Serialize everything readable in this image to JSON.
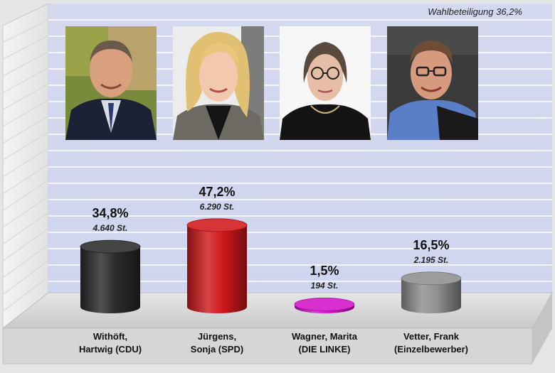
{
  "turnout_label": "Wahlbeteiligung 36,2%",
  "chart_data": {
    "type": "bar",
    "categories": [
      "Withöft, Hartwig (CDU)",
      "Jürgens, Sonja (SPD)",
      "Wagner, Marita (DIE LINKE)",
      "Vetter, Frank (Einzelbewerber)"
    ],
    "series": [
      {
        "values": [
          34.8,
          47.2,
          1.5,
          16.5
        ]
      }
    ],
    "ylim": [
      0,
      100
    ],
    "grid": true,
    "legend": "none"
  },
  "candidates": [
    {
      "name_line1": "Withöft,",
      "name_line2": "Hartwig (CDU)",
      "percent_label": "34,8%",
      "percent": 34.8,
      "votes_label": "4.640 St.",
      "bar_color": "#2a2a2a"
    },
    {
      "name_line1": "Jürgens,",
      "name_line2": "Sonja (SPD)",
      "percent_label": "47,2%",
      "percent": 47.2,
      "votes_label": "6.290 St.",
      "bar_color": "#d0181c"
    },
    {
      "name_line1": "Wagner, Marita",
      "name_line2": "(DIE LINKE)",
      "percent_label": "1,5%",
      "percent": 1.5,
      "votes_label": "194 St.",
      "bar_color": "#d313c9"
    },
    {
      "name_line1": "Vetter, Frank",
      "name_line2": "(Einzelbewerber)",
      "percent_label": "16,5%",
      "percent": 16.5,
      "votes_label": "2.195 St.",
      "bar_color": "#8f8f8f"
    }
  ],
  "colors": {
    "plot_background": "#d2d8ef",
    "grid": "#ffffff",
    "floor": "#cfd0d2",
    "side_wall": "#e9eaeb"
  },
  "photo_icons": [
    "portrait-withoeft-icon",
    "portrait-juergens-icon",
    "portrait-wagner-icon",
    "portrait-vetter-icon"
  ]
}
